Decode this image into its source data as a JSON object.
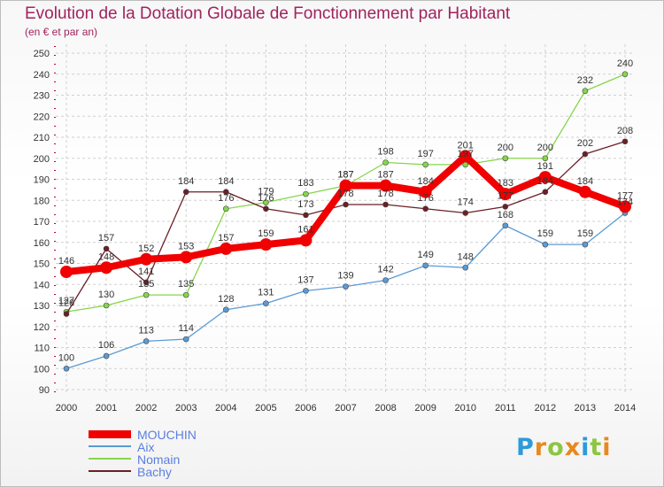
{
  "chart_data": {
    "type": "line",
    "title": "Evolution de la Dotation Globale de Fonctionnement par Habitant",
    "subtitle": "(en € et par an)",
    "xlabel": "",
    "ylabel": "",
    "ylim": [
      90,
      250
    ],
    "yticks": [
      90,
      100,
      110,
      120,
      130,
      140,
      150,
      160,
      170,
      180,
      190,
      200,
      210,
      220,
      230,
      240,
      250
    ],
    "categories": [
      "2000",
      "2001",
      "2002",
      "2003",
      "2004",
      "2005",
      "2006",
      "2007",
      "2008",
      "2009",
      "2010",
      "2011",
      "2012",
      "2013",
      "2014"
    ],
    "grid": true,
    "legend_position": "bottom-left",
    "series": [
      {
        "name": "Aix",
        "color": "#5b9bd5",
        "values": [
          100,
          106,
          113,
          114,
          128,
          131,
          137,
          139,
          142,
          149,
          148,
          168,
          159,
          159,
          174
        ]
      },
      {
        "name": "Nomain",
        "color": "#86d64a",
        "values": [
          127,
          130,
          135,
          135,
          176,
          179,
          183,
          187,
          198,
          197,
          197,
          200,
          200,
          232,
          240
        ]
      },
      {
        "name": "Bachy",
        "color": "#6b1f26",
        "values": [
          126,
          157,
          141,
          184,
          184,
          176,
          173,
          178,
          178,
          176,
          174,
          177,
          184,
          202,
          208
        ]
      },
      {
        "name": "MOUCHIN",
        "color": "#f00000",
        "values": [
          146,
          148,
          152,
          153,
          157,
          159,
          161,
          187,
          187,
          184,
          201,
          183,
          191,
          184,
          177
        ]
      }
    ]
  },
  "legend": {
    "items": [
      {
        "label": "MOUCHIN",
        "color": "#f00000"
      },
      {
        "label": "Aix",
        "color": "#5b9bd5"
      },
      {
        "label": "Nomain",
        "color": "#86d64a"
      },
      {
        "label": "Bachy",
        "color": "#6b1f26"
      }
    ]
  },
  "logo": {
    "letters": [
      "P",
      "r",
      "o",
      "x",
      "i",
      "t",
      "i"
    ],
    "colors": [
      "#2e9ad9",
      "#e8891c",
      "#8dc63f",
      "#e8891c",
      "#2e9ad9",
      "#8dc63f",
      "#e8891c"
    ]
  }
}
